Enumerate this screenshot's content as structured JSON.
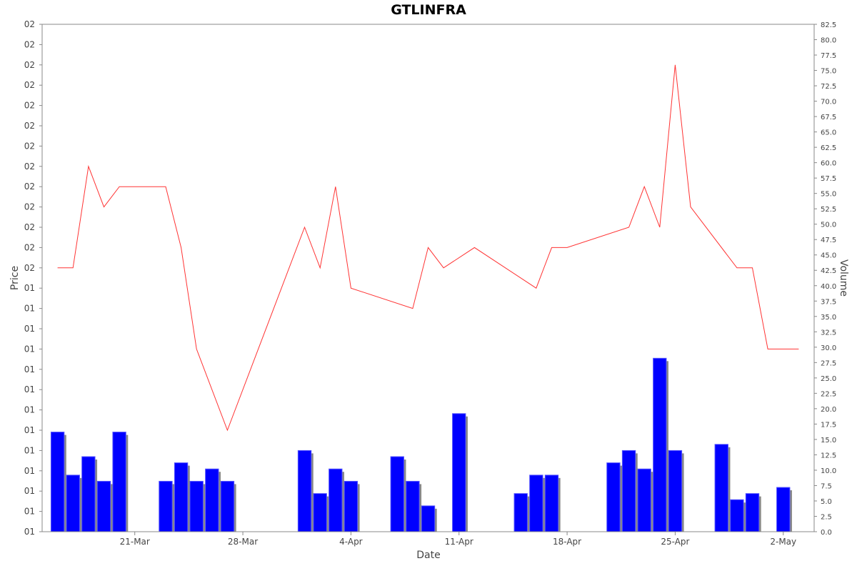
{
  "chart_data": {
    "type": "line+bar",
    "title": "GTLINFRA",
    "xlabel": "Date",
    "ylabel_left": "Price",
    "ylabel_right": "Volume",
    "left_tick_labels": [
      "01",
      "01",
      "01",
      "01",
      "01",
      "01",
      "01",
      "01",
      "01",
      "01",
      "01",
      "01",
      "01",
      "02",
      "02",
      "02",
      "02",
      "02",
      "02",
      "02",
      "02",
      "02",
      "02",
      "02",
      "02",
      "02"
    ],
    "right_axis": {
      "ylim": [
        0,
        82.5
      ],
      "ticks": [
        0.0,
        2.5,
        5.0,
        7.5,
        10.0,
        12.5,
        15.0,
        17.5,
        20.0,
        22.5,
        25.0,
        27.5,
        30.0,
        32.5,
        35.0,
        37.5,
        40.0,
        42.5,
        45.0,
        47.5,
        50.0,
        52.5,
        55.0,
        57.5,
        60.0,
        62.5,
        65.0,
        67.5,
        70.0,
        72.5,
        75.0,
        77.5,
        80.0,
        82.5
      ]
    },
    "x_tick_labels": [
      {
        "label": "21-Mar",
        "date": "2022-03-21"
      },
      {
        "label": "28-Mar",
        "date": "2022-03-28"
      },
      {
        "label": "4-Apr",
        "date": "2022-04-04"
      },
      {
        "label": "11-Apr",
        "date": "2022-04-11"
      },
      {
        "label": "18-Apr",
        "date": "2022-04-18"
      },
      {
        "label": "25-Apr",
        "date": "2022-04-25"
      },
      {
        "label": "2-May",
        "date": "2022-05-02"
      }
    ],
    "x_range": [
      "2022-03-15",
      "2022-05-04"
    ],
    "price_series": {
      "name": "Price",
      "color": "#ff3333",
      "price_range_note": "left axis tick labels shown as 01/02",
      "points": [
        {
          "x": "2022-03-16",
          "y": 1.13
        },
        {
          "x": "2022-03-17",
          "y": 1.13
        },
        {
          "x": "2022-03-18",
          "y": 1.18
        },
        {
          "x": "2022-03-19",
          "y": 1.16
        },
        {
          "x": "2022-03-20",
          "y": 1.17
        },
        {
          "x": "2022-03-23",
          "y": 1.17
        },
        {
          "x": "2022-03-24",
          "y": 1.14
        },
        {
          "x": "2022-03-25",
          "y": 1.09
        },
        {
          "x": "2022-03-27",
          "y": 1.05
        },
        {
          "x": "2022-04-01",
          "y": 1.15
        },
        {
          "x": "2022-04-02",
          "y": 1.13
        },
        {
          "x": "2022-04-03",
          "y": 1.17
        },
        {
          "x": "2022-04-04",
          "y": 1.12
        },
        {
          "x": "2022-04-08",
          "y": 1.11
        },
        {
          "x": "2022-04-09",
          "y": 1.14
        },
        {
          "x": "2022-04-10",
          "y": 1.13
        },
        {
          "x": "2022-04-12",
          "y": 1.14
        },
        {
          "x": "2022-04-16",
          "y": 1.12
        },
        {
          "x": "2022-04-17",
          "y": 1.14
        },
        {
          "x": "2022-04-18",
          "y": 1.14
        },
        {
          "x": "2022-04-22",
          "y": 1.15
        },
        {
          "x": "2022-04-23",
          "y": 1.17
        },
        {
          "x": "2022-04-24",
          "y": 1.15
        },
        {
          "x": "2022-04-25",
          "y": 1.23
        },
        {
          "x": "2022-04-26",
          "y": 1.16
        },
        {
          "x": "2022-04-29",
          "y": 1.13
        },
        {
          "x": "2022-04-30",
          "y": 1.13
        },
        {
          "x": "2022-05-01",
          "y": 1.09
        },
        {
          "x": "2022-05-03",
          "y": 1.09
        }
      ],
      "ylim": [
        1.0,
        1.25
      ]
    },
    "volume_series": {
      "name": "Volume",
      "color": "#0000ff",
      "shadow_color": "#888888",
      "bars": [
        {
          "x": "2022-03-16",
          "y": 16.2
        },
        {
          "x": "2022-03-17",
          "y": 9.2
        },
        {
          "x": "2022-03-18",
          "y": 12.2
        },
        {
          "x": "2022-03-19",
          "y": 8.2
        },
        {
          "x": "2022-03-20",
          "y": 16.2
        },
        {
          "x": "2022-03-23",
          "y": 8.2
        },
        {
          "x": "2022-03-24",
          "y": 11.2
        },
        {
          "x": "2022-03-25",
          "y": 8.2
        },
        {
          "x": "2022-03-26",
          "y": 10.2
        },
        {
          "x": "2022-03-27",
          "y": 8.2
        },
        {
          "x": "2022-04-01",
          "y": 13.2
        },
        {
          "x": "2022-04-02",
          "y": 6.2
        },
        {
          "x": "2022-04-03",
          "y": 10.2
        },
        {
          "x": "2022-04-04",
          "y": 8.2
        },
        {
          "x": "2022-04-07",
          "y": 12.2
        },
        {
          "x": "2022-04-08",
          "y": 8.2
        },
        {
          "x": "2022-04-09",
          "y": 4.2
        },
        {
          "x": "2022-04-11",
          "y": 19.2
        },
        {
          "x": "2022-04-15",
          "y": 6.2
        },
        {
          "x": "2022-04-16",
          "y": 9.2
        },
        {
          "x": "2022-04-17",
          "y": 9.2
        },
        {
          "x": "2022-04-21",
          "y": 11.2
        },
        {
          "x": "2022-04-22",
          "y": 13.2
        },
        {
          "x": "2022-04-23",
          "y": 10.2
        },
        {
          "x": "2022-04-24",
          "y": 28.2
        },
        {
          "x": "2022-04-25",
          "y": 13.2
        },
        {
          "x": "2022-04-28",
          "y": 14.2
        },
        {
          "x": "2022-04-29",
          "y": 5.2
        },
        {
          "x": "2022-04-30",
          "y": 6.2
        },
        {
          "x": "2022-05-02",
          "y": 7.2
        }
      ]
    },
    "grid": false,
    "legend": "none"
  }
}
